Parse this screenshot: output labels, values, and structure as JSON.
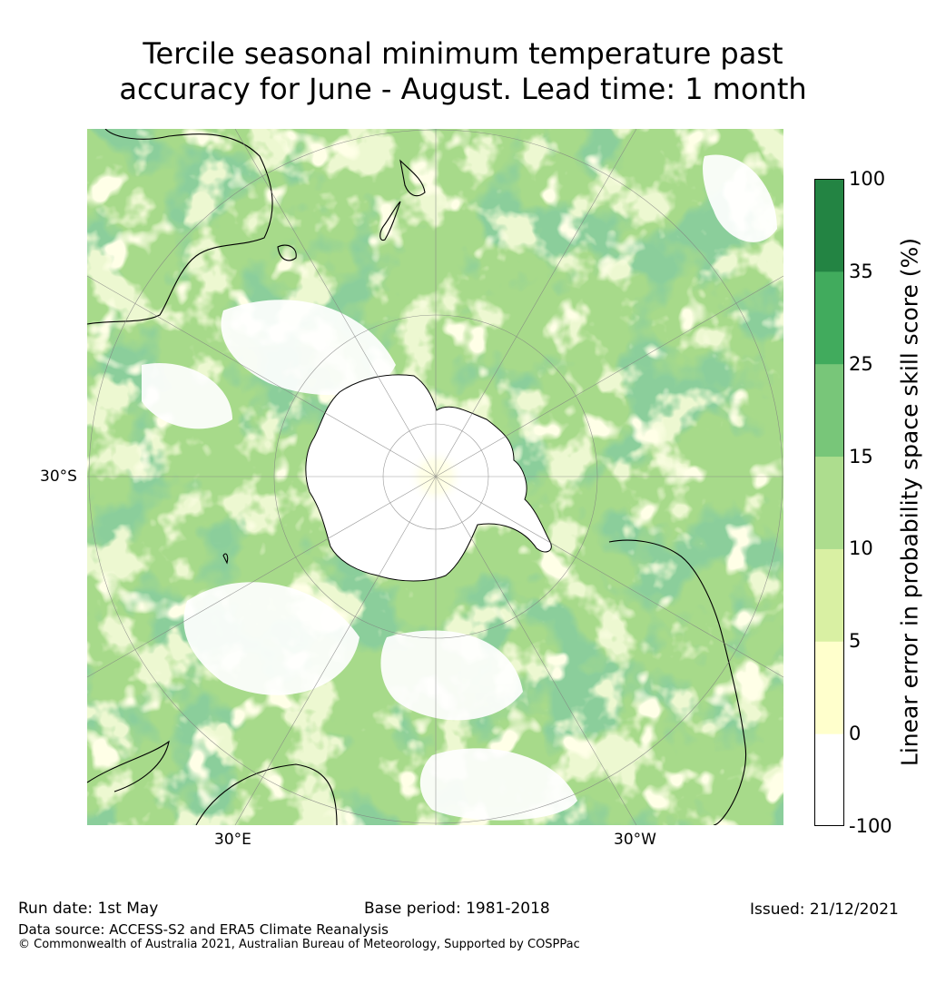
{
  "title": {
    "line1": "Tercile seasonal minimum temperature past",
    "line2": "accuracy for June - August. Lead time: 1 month"
  },
  "map": {
    "projection": "south-polar-stereographic",
    "graticule_labels": {
      "lat_left": "30°S",
      "lon_bottom_left": "30°E",
      "lon_bottom_right": "30°W"
    },
    "land_outline_color": "#000000",
    "graticule_color": "#808080"
  },
  "colorbar": {
    "title": "Linear error in probability space skill score (%)",
    "ticks": [
      "100",
      "35",
      "25",
      "15",
      "10",
      "5",
      "0",
      "-100"
    ],
    "bins": [
      {
        "from": -100,
        "to": 0,
        "color": "#ffffff"
      },
      {
        "from": 0,
        "to": 5,
        "color": "#ffffcc"
      },
      {
        "from": 5,
        "to": 10,
        "color": "#d9f0a3"
      },
      {
        "from": 10,
        "to": 15,
        "color": "#addd8e"
      },
      {
        "from": 15,
        "to": 25,
        "color": "#78c679"
      },
      {
        "from": 25,
        "to": 35,
        "color": "#41ab5d"
      },
      {
        "from": 35,
        "to": 100,
        "color": "#238443"
      }
    ]
  },
  "footer": {
    "run_date": "Run date: 1st May",
    "base_period": "Base period: 1981-2018",
    "issued": "Issued: 21/12/2021",
    "data_source": "Data source: ACCESS-S2 and ERA5 Climate Reanalysis",
    "copyright": "© Commonwealth of Australia 2021, Australian Bureau of Meteorology, Supported by COSPPac"
  }
}
